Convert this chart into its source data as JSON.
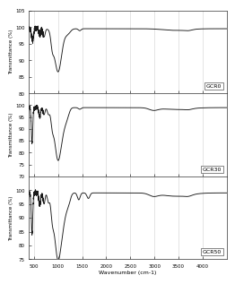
{
  "title": "",
  "xlabel": "Wavenumber (cm-1)",
  "ylabel": "Transmittance (%)",
  "xlim": [
    400,
    4500
  ],
  "x_ticks": [
    500,
    1000,
    1500,
    2000,
    2500,
    3000,
    3500,
    4000
  ],
  "x_tick_labels": [
    "500",
    "1000",
    "1500",
    "2000",
    "2500",
    "3000",
    "3500",
    "4000"
  ],
  "panels": [
    {
      "label": "GCR0",
      "ylim": [
        80,
        105
      ],
      "yticks": [
        80,
        85,
        90,
        95,
        100,
        105
      ]
    },
    {
      "label": "GCR30",
      "ylim": [
        70,
        105
      ],
      "yticks": [
        70,
        75,
        80,
        85,
        90,
        95,
        100
      ]
    },
    {
      "label": "GCR50",
      "ylim": [
        75,
        105
      ],
      "yticks": [
        75,
        80,
        85,
        90,
        95,
        100
      ]
    }
  ],
  "line_color": "#1a1a1a",
  "line_width": 0.65,
  "grid_color": "#d0d0d0",
  "grid_lw": 0.4,
  "face_color": "#ffffff"
}
